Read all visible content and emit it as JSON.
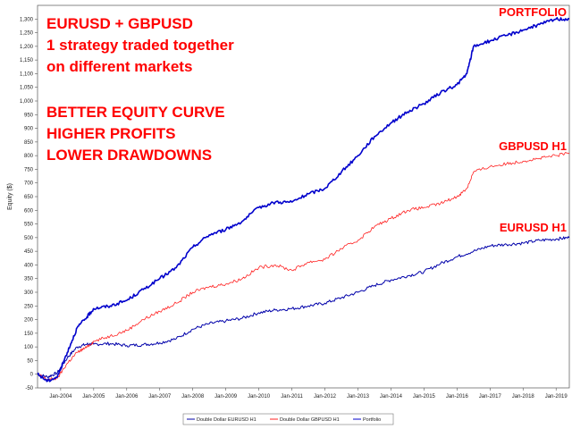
{
  "chart_data": {
    "type": "line",
    "ylabel": "Equity ($)",
    "ylim": [
      -50,
      1350
    ],
    "y_ticks": [
      "1,300",
      "1,250",
      "1,200",
      "1,150",
      "1,100",
      "1,050",
      "1,000",
      "950",
      "900",
      "850",
      "800",
      "750",
      "700",
      "650",
      "600",
      "550",
      "500",
      "450",
      "400",
      "350",
      "300",
      "250",
      "200",
      "150",
      "100",
      "50",
      "0",
      "-50"
    ],
    "x_ticks": [
      "Jan-2004",
      "Jan-2005",
      "Jan-2006",
      "Jan-2007",
      "Jan-2008",
      "Jan-2009",
      "Jan-2010",
      "Jan-2011",
      "Jan-2012",
      "Jan-2013",
      "Jan-2014",
      "Jan-2015",
      "Jan-2016",
      "Jan-2017",
      "Jan-2018",
      "Jan-2019"
    ],
    "xlim": [
      2003.3,
      2019.4
    ],
    "grid": false,
    "series": [
      {
        "name": "Double Dollar EURUSD H1",
        "color": "#0000aa",
        "x": [
          2003.3,
          2003.6,
          2003.9,
          2004.2,
          2004.5,
          2004.8,
          2005.0,
          2005.5,
          2006.0,
          2006.5,
          2007.0,
          2007.5,
          2008.0,
          2008.5,
          2009.0,
          2009.5,
          2010.0,
          2010.5,
          2011.0,
          2011.5,
          2012.0,
          2012.5,
          2013.0,
          2013.5,
          2014.0,
          2014.5,
          2015.0,
          2015.5,
          2016.0,
          2016.5,
          2017.0,
          2017.5,
          2018.0,
          2018.5,
          2019.0,
          2019.4
        ],
        "y": [
          0,
          -10,
          5,
          60,
          100,
          110,
          110,
          112,
          105,
          108,
          115,
          130,
          165,
          185,
          195,
          205,
          225,
          235,
          240,
          250,
          260,
          280,
          300,
          325,
          345,
          360,
          375,
          405,
          430,
          450,
          470,
          475,
          480,
          490,
          495,
          500
        ]
      },
      {
        "name": "Double Dollar GBPUSD H1",
        "color": "#ff2020",
        "x": [
          2003.3,
          2003.6,
          2003.9,
          2004.2,
          2004.5,
          2004.8,
          2005.0,
          2005.5,
          2006.0,
          2006.5,
          2007.0,
          2007.5,
          2008.0,
          2008.5,
          2009.0,
          2009.5,
          2010.0,
          2010.5,
          2011.0,
          2011.5,
          2012.0,
          2012.5,
          2013.0,
          2013.5,
          2014.0,
          2014.5,
          2015.0,
          2015.5,
          2016.0,
          2016.3,
          2016.5,
          2017.0,
          2017.5,
          2018.0,
          2018.5,
          2019.0,
          2019.4
        ],
        "y": [
          0,
          -20,
          -15,
          40,
          80,
          100,
          120,
          140,
          160,
          200,
          230,
          260,
          300,
          320,
          330,
          350,
          390,
          400,
          380,
          410,
          420,
          460,
          490,
          540,
          570,
          600,
          610,
          625,
          650,
          680,
          740,
          760,
          770,
          780,
          790,
          800,
          810
        ]
      },
      {
        "name": "Portfolio",
        "color": "#0000cc",
        "x": [
          2003.3,
          2003.6,
          2003.9,
          2004.2,
          2004.5,
          2004.8,
          2005.0,
          2005.5,
          2006.0,
          2006.5,
          2007.0,
          2007.5,
          2008.0,
          2008.5,
          2009.0,
          2009.5,
          2010.0,
          2010.5,
          2011.0,
          2011.5,
          2012.0,
          2012.5,
          2013.0,
          2013.5,
          2014.0,
          2014.5,
          2015.0,
          2015.5,
          2016.0,
          2016.3,
          2016.5,
          2017.0,
          2017.5,
          2018.0,
          2018.5,
          2019.0,
          2019.4
        ],
        "y": [
          0,
          -25,
          -10,
          80,
          170,
          210,
          240,
          250,
          270,
          310,
          350,
          390,
          465,
          510,
          530,
          560,
          610,
          630,
          630,
          660,
          680,
          740,
          800,
          870,
          920,
          960,
          990,
          1030,
          1060,
          1100,
          1200,
          1220,
          1240,
          1260,
          1280,
          1300,
          1300
        ]
      }
    ],
    "annotations": [
      "EURUSD + GBPUSD",
      "1 strategy traded together",
      "on different markets",
      "BETTER EQUITY CURVE",
      "HIGHER PROFITS",
      "LOWER DRAWDOWNS"
    ],
    "series_labels": [
      "PORTFOLIO",
      "GBPUSD H1",
      "EURUSD H1"
    ],
    "legend": {
      "placement": "bottom",
      "items": [
        "Double Dollar EURUSD H1",
        "Double Dollar GBPUSD H1",
        "Portfolio"
      ]
    }
  }
}
